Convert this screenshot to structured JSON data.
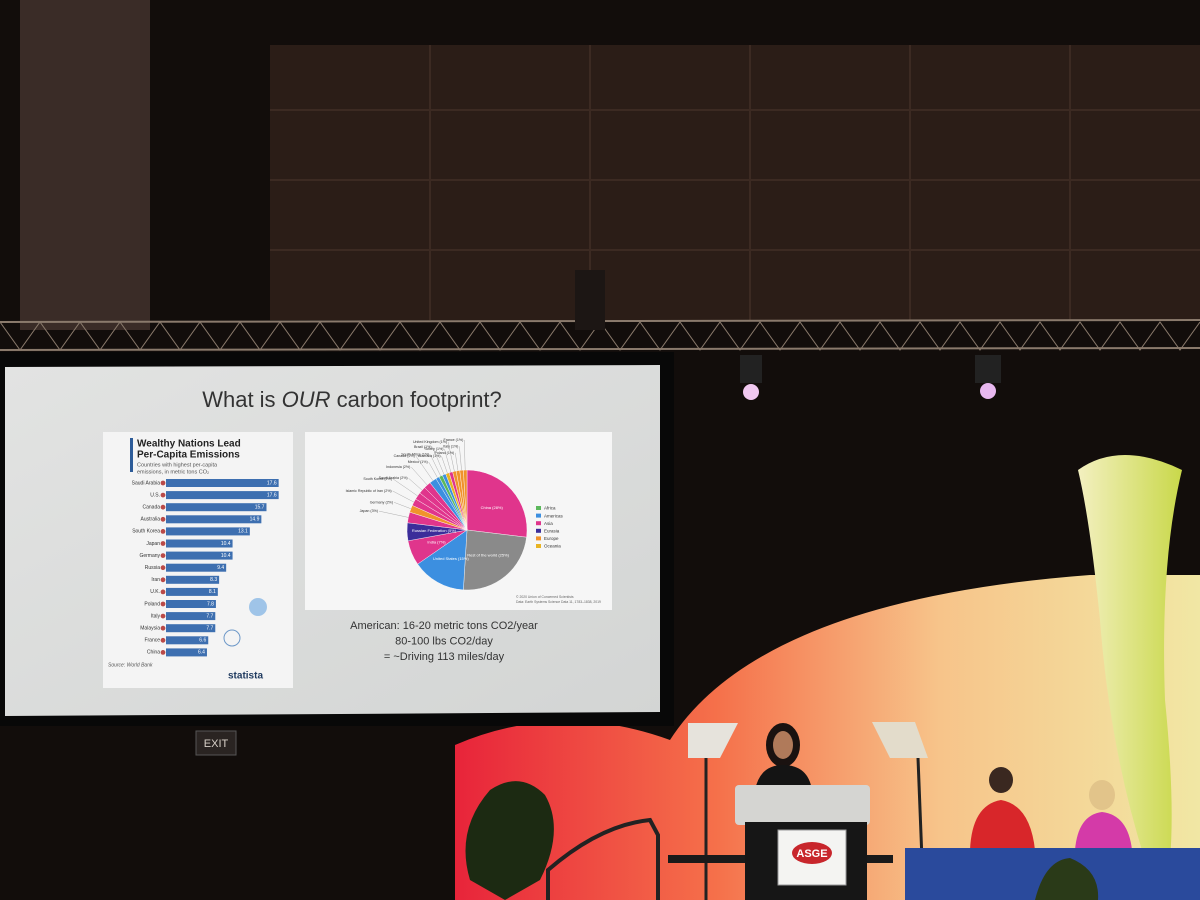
{
  "slide": {
    "title_parts": [
      "What is ",
      "OUR",
      " carbon footprint?"
    ],
    "notes": [
      "American: 16-20 metric tons CO2/year",
      "80-100 lbs CO2/day",
      "= ~Driving 113 miles/day"
    ]
  },
  "chart_data": [
    {
      "type": "bar",
      "orientation": "horizontal",
      "title": [
        "Wealthy Nations Lead",
        "Per-Capita Emissions"
      ],
      "subtitle": [
        "Countries with highest per-capita",
        "emissions, in metric tons CO₂"
      ],
      "categories": [
        "Saudi Arabia",
        "U.S.",
        "Canada",
        "Australia",
        "South Korea",
        "Japan",
        "Germany",
        "Russia",
        "Iran",
        "U.K.",
        "Poland",
        "Italy",
        "Malaysia",
        "France",
        "China"
      ],
      "values": [
        17.6,
        17.6,
        15.7,
        14.9,
        13.1,
        10.4,
        10.4,
        9.4,
        8.3,
        8.1,
        7.8,
        7.7,
        7.7,
        6.6,
        6.4
      ],
      "color": "#3d6fb0",
      "source": "Source: World Bank",
      "brand": "statista"
    },
    {
      "type": "pie",
      "categories": [
        "China (28%)",
        "Rest of the world (25%)",
        "United States (15%)",
        "India (7%)",
        "Russian Federation (5%)",
        "Japan (3%)",
        "Germany (2%)",
        "Islamic Republic of Iran (2%)",
        "South Korea (2%)",
        "Saudi Arabia (2%)",
        "Indonesia (2%)",
        "Canada (2%)",
        "Mexico (1%)",
        "South Africa (1%)",
        "Brazil (1%)",
        "Australia (1%)",
        "Turkey (1%)",
        "United Kingdom (1%)",
        "Poland (1%)",
        "Italy (1%)",
        "France (1%)"
      ],
      "values": [
        28,
        25,
        15,
        7,
        5,
        3,
        2,
        2,
        2,
        2,
        2,
        2,
        1,
        1,
        1,
        1,
        1,
        1,
        1,
        1,
        1
      ],
      "colors": [
        "#e0358c",
        "#8a8a8a",
        "#3c8fe0",
        "#e0358c",
        "#3b2d9a",
        "#e0358c",
        "#f0922c",
        "#e0358c",
        "#e0358c",
        "#e0358c",
        "#e0358c",
        "#3c8fe0",
        "#3c8fe0",
        "#5cb85c",
        "#3c8fe0",
        "#e8b423",
        "#e0358c",
        "#f0922c",
        "#f0922c",
        "#f0922c",
        "#f0922c"
      ],
      "legend": [
        {
          "name": "Africa",
          "color": "#5cb85c"
        },
        {
          "name": "Americas",
          "color": "#3c8fe0"
        },
        {
          "name": "Asia",
          "color": "#e0358c"
        },
        {
          "name": "Eurasia",
          "color": "#3b2d9a"
        },
        {
          "name": "Europe",
          "color": "#f0922c"
        },
        {
          "name": "Oceania",
          "color": "#e8b423"
        }
      ],
      "credits": [
        "© 2020 Union of Concerned Scientists",
        "Data: Earth Systems Science Data 11, 1783–1838, 2019"
      ]
    }
  ],
  "venue": {
    "exit_sign": "EXIT",
    "podium_logo": "ASGE"
  }
}
